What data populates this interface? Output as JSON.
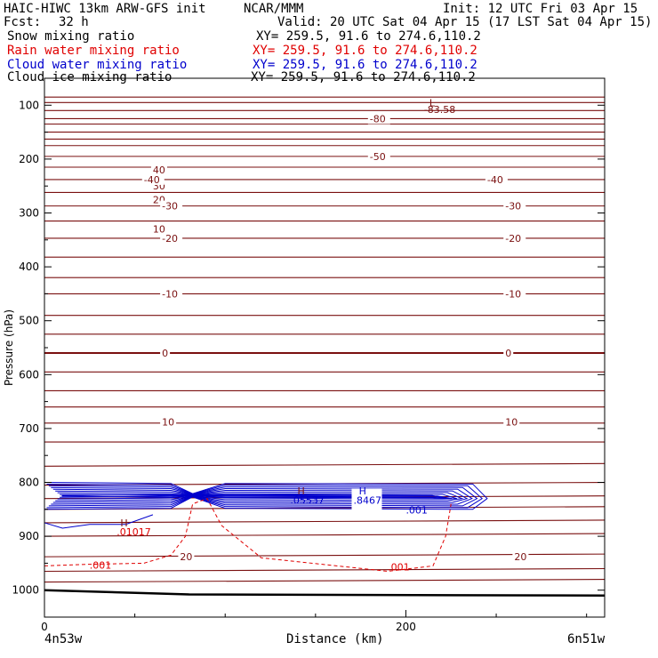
{
  "header": {
    "model": "HAIC-HIWC 13km ARW-GFS init",
    "org": "NCAR/MMM",
    "init": "Init: 12 UTC Fri 03 Apr 15",
    "fcst_label": "Fcst:",
    "fcst_value": "32 h",
    "valid": "Valid: 20 UTC Sat 04 Apr 15 (17 LST Sat 04 Apr 15)",
    "fields": [
      {
        "name": "Snow mixing ratio",
        "xy": "XY= 259.5, 91.6 to 274.6,110.2",
        "color": "#000000"
      },
      {
        "name": "Rain water mixing ratio",
        "xy": "XY= 259.5, 91.6 to 274.6,110.2",
        "color": "#e00000"
      },
      {
        "name": "Cloud water mixing ratio",
        "xy": "XY= 259.5, 91.6 to 274.6,110.2",
        "color": "#0000cc"
      },
      {
        "name": "Cloud ice mixing ratio",
        "xy": "XY= 259.5, 91.6 to 274.6,110.2",
        "color": "#000000"
      }
    ]
  },
  "chart_data": {
    "type": "contour",
    "ylabel": "Pressure (hPa)",
    "xlabel": "Distance (km)",
    "y_ticks": [
      100,
      200,
      300,
      400,
      500,
      600,
      700,
      800,
      900,
      1000
    ],
    "x_ticks": [
      0,
      200
    ],
    "xlim": [
      0,
      310
    ],
    "ylim": [
      50,
      1050
    ],
    "y_axis": "pressure, increasing downward",
    "left_endpoint": "4n53w",
    "right_endpoint": "6n51w",
    "temperature_contours": {
      "color": "#7a1010",
      "levels": [
        {
          "value": 40,
          "label": "40",
          "pressure": 220,
          "label_x": [
            60
          ]
        },
        {
          "value": 30,
          "label": "30",
          "pressure": 250,
          "label_x": [
            60
          ]
        },
        {
          "value": 20,
          "label": "20",
          "pressure": 275,
          "label_x": [
            60
          ]
        },
        {
          "value": 10,
          "label": "10",
          "pressure": 330,
          "label_x": [
            60
          ]
        },
        {
          "value": 0,
          "label": "-80",
          "pressure": 125,
          "label_x": [
            180
          ]
        },
        {
          "value": 0,
          "label": "-50",
          "pressure": 195,
          "label_x": [
            180
          ]
        },
        {
          "value": 0,
          "label": "-40",
          "pressure": 238,
          "label_x": [
            55,
            245
          ]
        },
        {
          "value": 0,
          "label": "-30",
          "pressure": 287,
          "label_x": [
            65,
            255
          ]
        },
        {
          "value": 0,
          "label": "-20",
          "pressure": 347,
          "label_x": [
            65,
            255
          ]
        },
        {
          "value": 0,
          "label": "-10",
          "pressure": 450,
          "label_x": [
            65,
            255
          ]
        },
        {
          "value": 0,
          "label": "0",
          "pressure": 560,
          "label_x": [
            65,
            255
          ]
        },
        {
          "value": 10,
          "label": "10",
          "pressure": 688,
          "label_x": [
            65,
            255
          ]
        },
        {
          "value": 20,
          "label": "20",
          "pressure": 938,
          "label_x": [
            75,
            260
          ]
        }
      ],
      "lines_pressure": [
        85,
        95,
        110,
        125,
        135,
        150,
        163,
        175,
        195,
        215,
        238,
        262,
        287,
        315,
        347,
        382,
        420,
        450,
        490,
        525,
        560,
        595,
        630,
        660,
        690,
        725,
        770,
        805,
        830,
        850,
        875,
        900,
        938,
        965,
        985
      ],
      "low_label": "L",
      "low_value": "-83.58"
    },
    "cloud_water_contours": {
      "color": "#0000cc",
      "max_label": "H",
      "max_value": ".8467",
      "secondary_label": "H",
      "secondary_value": ".05537",
      "edge_label": ".001"
    },
    "rain_water_contours": {
      "color": "#e00000",
      "max_label": "H",
      "max_value": ".01017",
      "edge_labels": [
        ".001",
        ".001"
      ]
    },
    "surface_pressure": [
      1000,
      1010
    ]
  }
}
